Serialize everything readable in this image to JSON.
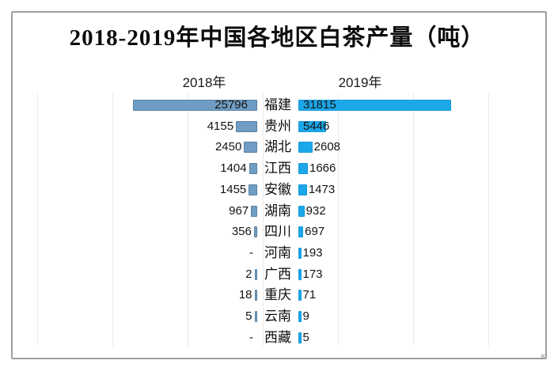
{
  "title": "2018-2019年中国各地区白茶产量（吨）",
  "column_headers": {
    "left": "2018年",
    "right": "2019年"
  },
  "corner_glyph": "«",
  "colors": {
    "bar_2018": "#6f9dc3",
    "bar_2018_border": "#5a82a2",
    "bar_2019": "#1ca7e9",
    "bar_2019_border": "#149ada",
    "gridline": "#e9e9e9",
    "frame": "#9f9f9f",
    "text": "#141414"
  },
  "chart_data": {
    "type": "bar",
    "orientation": "horizontal-tornado",
    "title": "2018-2019年中国各地区白茶产量（吨）",
    "unit": "吨",
    "categories": [
      "福建",
      "贵州",
      "湖北",
      "江西",
      "安徽",
      "湖南",
      "四川",
      "河南",
      "广西",
      "重庆",
      "云南",
      "西藏"
    ],
    "series": [
      {
        "name": "2018年",
        "direction": "left",
        "values": [
          25796,
          4155,
          2450,
          1404,
          1455,
          967,
          356,
          null,
          2,
          18,
          5,
          null
        ],
        "labels": [
          "25796",
          "4155",
          "2450",
          "1404",
          "1455",
          "967",
          "356",
          "-",
          "2",
          "18",
          "5",
          "-"
        ]
      },
      {
        "name": "2019年",
        "direction": "right",
        "values": [
          31815,
          5446,
          2608,
          1666,
          1473,
          932,
          697,
          193,
          173,
          71,
          9,
          5
        ],
        "labels": [
          "31815",
          "5446",
          "2608",
          "1666",
          "1473",
          "932",
          "697",
          "193",
          "173",
          "71",
          "9",
          "5"
        ]
      }
    ],
    "axis_range_per_side": [
      0,
      35000
    ],
    "grid": "faint-vertical",
    "legend_position": "column-headers-above"
  }
}
